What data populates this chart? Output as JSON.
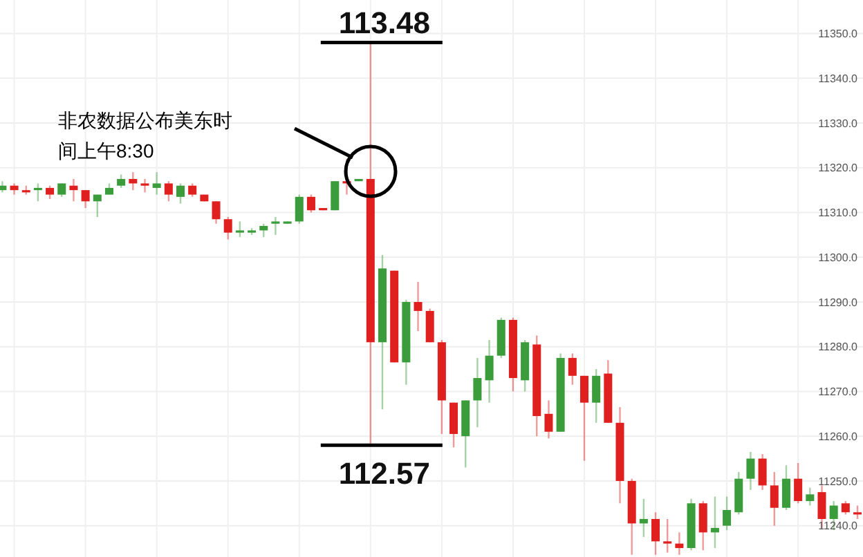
{
  "chart_data": {
    "type": "candlestick",
    "categories": [
      null,
      null,
      null,
      null,
      null,
      null,
      null,
      null,
      null,
      null,
      null,
      null,
      null,
      null,
      null,
      null,
      null,
      null,
      null,
      null,
      null,
      null,
      null,
      null,
      null,
      null,
      null,
      null,
      null,
      null,
      null,
      null,
      null,
      null,
      null,
      null,
      null,
      null,
      null,
      null,
      null,
      null,
      null,
      null,
      null,
      null,
      null,
      null,
      null,
      null,
      null,
      null,
      null,
      null,
      null,
      null,
      null,
      null,
      null,
      null,
      null,
      null,
      null,
      null,
      null,
      null,
      null,
      null,
      null,
      null,
      null,
      null,
      null
    ],
    "ohlc": [
      [
        11315,
        11317,
        11314.5,
        11316
      ],
      [
        11316,
        11316.5,
        11314,
        11315
      ],
      [
        11315,
        11316,
        11314,
        11314.5
      ],
      [
        11315,
        11316.5,
        11312.5,
        11315.5
      ],
      [
        11315.5,
        11316,
        11313,
        11314
      ],
      [
        11314,
        11316.5,
        11313.5,
        11316.5
      ],
      [
        11316,
        11317.5,
        11312.5,
        11315
      ],
      [
        11315,
        11315,
        11311,
        11312.5
      ],
      [
        11312.5,
        11314,
        11309,
        11314
      ],
      [
        11314,
        11316.5,
        11314,
        11315.5
      ],
      [
        11316,
        11318.5,
        11315.5,
        11317.5
      ],
      [
        11317.5,
        11319,
        11315,
        11316.5
      ],
      [
        11316.5,
        11317.5,
        11314.5,
        11316
      ],
      [
        11315.5,
        11319,
        11314,
        11316.5
      ],
      [
        11316.5,
        11317,
        11312.5,
        11314
      ],
      [
        11313.5,
        11316.5,
        11312,
        11316
      ],
      [
        11316,
        11316.5,
        11313.5,
        11314
      ],
      [
        11314,
        11314,
        11312.5,
        11312.5
      ],
      [
        11312.5,
        11312.5,
        11307.5,
        11308.5
      ],
      [
        11308.5,
        11309,
        11304,
        11305.5
      ],
      [
        11305.5,
        11308,
        11304.5,
        11306
      ],
      [
        11305.5,
        11306.5,
        11305,
        11306
      ],
      [
        11306,
        11307.5,
        11304.5,
        11307
      ],
      [
        11307.5,
        11309,
        11305,
        11308
      ],
      [
        11307.5,
        11308,
        11307.5,
        11308
      ],
      [
        11308,
        11314,
        11307.5,
        11313.5
      ],
      [
        11313.5,
        11314,
        11310,
        11310.5
      ],
      [
        11311,
        11311,
        11310.5,
        11310.5
      ],
      [
        11310.5,
        11317,
        11310.5,
        11317
      ],
      [
        11317,
        11322,
        11314,
        11316.5
      ],
      [
        11317,
        11317.5,
        11317,
        11317.5
      ],
      [
        11317.5,
        11348,
        11258,
        11281
      ],
      [
        11281,
        11300.5,
        11266,
        11297.5
      ],
      [
        11297,
        11297,
        11276.5,
        11276.5
      ],
      [
        11276.5,
        11290.5,
        11271.5,
        11290
      ],
      [
        11290,
        11294.5,
        11283.5,
        11288
      ],
      [
        11288,
        11288.5,
        11281,
        11281
      ],
      [
        11281,
        11281.5,
        11260.5,
        11268
      ],
      [
        11267.5,
        11267.5,
        11257.5,
        11260.5
      ],
      [
        11260,
        11268,
        11253,
        11268
      ],
      [
        11268,
        11277.5,
        11262,
        11273
      ],
      [
        11272.5,
        11281.5,
        11267.5,
        11278
      ],
      [
        11278,
        11286.5,
        11277.5,
        11286
      ],
      [
        11286,
        11286.5,
        11270,
        11273
      ],
      [
        11272.5,
        11281.5,
        11270,
        11281
      ],
      [
        11280.5,
        11282.5,
        11260,
        11264.5
      ],
      [
        11265,
        11268,
        11259.5,
        11261
      ],
      [
        11261,
        11278.5,
        11261,
        11277.5
      ],
      [
        11277.5,
        11278.5,
        11271.5,
        11273.5
      ],
      [
        11273.5,
        11273.5,
        11254.5,
        11267.5
      ],
      [
        11267.5,
        11275,
        11263,
        11273.5
      ],
      [
        11274,
        11277,
        11263,
        11263
      ],
      [
        11263,
        11266.5,
        11245,
        11250
      ],
      [
        11250,
        11250.5,
        11233.5,
        11240.5
      ],
      [
        11240.5,
        11246,
        11237.5,
        11241.5
      ],
      [
        11241.5,
        11243,
        11233.5,
        11236.5
      ],
      [
        11236.5,
        11241.5,
        11234,
        11236
      ],
      [
        11236,
        11238.5,
        11233.5,
        11235
      ],
      [
        11235,
        11246,
        11234.5,
        11245
      ],
      [
        11245,
        11245.5,
        11234.5,
        11238.5
      ],
      [
        11238.5,
        11246.5,
        11235,
        11239.5
      ],
      [
        11240,
        11246.5,
        11239,
        11243.5
      ],
      [
        11243,
        11252,
        11242.5,
        11250.5
      ],
      [
        11250.5,
        11256.5,
        11248,
        11255
      ],
      [
        11255,
        11256,
        11248,
        11249
      ],
      [
        11249,
        11252,
        11240,
        11244
      ],
      [
        11244,
        11253.5,
        11243.5,
        11250.5
      ],
      [
        11250.5,
        11254,
        11245,
        11245.5
      ],
      [
        11245.5,
        11248.5,
        11244.5,
        11247
      ],
      [
        11247.5,
        11249,
        11239.5,
        11241.5
      ],
      [
        11241.5,
        11245.5,
        11239,
        11244.5
      ],
      [
        11245,
        11245.5,
        11242.5,
        11243
      ],
      [
        11243,
        11244.5,
        11241.5,
        11242.5
      ]
    ],
    "colors": [
      "#3a9c3a",
      "#e0201f",
      "#e0201f",
      "#3a9c3a",
      "#e0201f",
      "#3a9c3a",
      "#e0201f",
      "#e0201f",
      "#3a9c3a",
      "#3a9c3a",
      "#3a9c3a",
      "#e0201f",
      "#e0201f",
      "#3a9c3a",
      "#e0201f",
      "#3a9c3a",
      "#e0201f",
      "#e0201f",
      "#e0201f",
      "#e0201f",
      "#3a9c3a",
      "#3a9c3a",
      "#3a9c3a",
      "#3a9c3a",
      "#3a9c3a",
      "#3a9c3a",
      "#e0201f",
      "#e0201f",
      "#3a9c3a",
      "#e0201f",
      "#3a9c3a",
      "#e0201f",
      "#3a9c3a",
      "#e0201f",
      "#3a9c3a",
      "#e0201f",
      "#e0201f",
      "#e0201f",
      "#e0201f",
      "#3a9c3a",
      "#3a9c3a",
      "#3a9c3a",
      "#3a9c3a",
      "#e0201f",
      "#3a9c3a",
      "#e0201f",
      "#e0201f",
      "#3a9c3a",
      "#e0201f",
      "#e0201f",
      "#3a9c3a",
      "#e0201f",
      "#e0201f",
      "#e0201f",
      "#3a9c3a",
      "#e0201f",
      "#e0201f",
      "#e0201f",
      "#3a9c3a",
      "#e0201f",
      "#3a9c3a",
      "#3a9c3a",
      "#3a9c3a",
      "#3a9c3a",
      "#e0201f",
      "#e0201f",
      "#3a9c3a",
      "#e0201f",
      "#3a9c3a",
      "#e0201f",
      "#3a9c3a",
      "#e0201f",
      "#e0201f"
    ],
    "ylim": [
      11233,
      11357.5
    ],
    "yticks": [
      {
        "value": 11240,
        "label": "11240.0"
      },
      {
        "value": 11250,
        "label": "11250.0"
      },
      {
        "value": 11260,
        "label": "11260.0"
      },
      {
        "value": 11270,
        "label": "11270.0"
      },
      {
        "value": 11280,
        "label": "11280.0"
      },
      {
        "value": 11290,
        "label": "11290.0"
      },
      {
        "value": 11300,
        "label": "11300.0"
      },
      {
        "value": 11310,
        "label": "11310.0"
      },
      {
        "value": 11320,
        "label": "11320.0"
      },
      {
        "value": 11330,
        "label": "11330.0"
      },
      {
        "value": 11340,
        "label": "11340.0"
      },
      {
        "value": 11350,
        "label": "11350.0"
      }
    ],
    "grid": true,
    "tick_labels": "y",
    "annotations": [
      "113.48",
      "112.57",
      "非农数据公布美东时间上午8:30"
    ]
  }
}
